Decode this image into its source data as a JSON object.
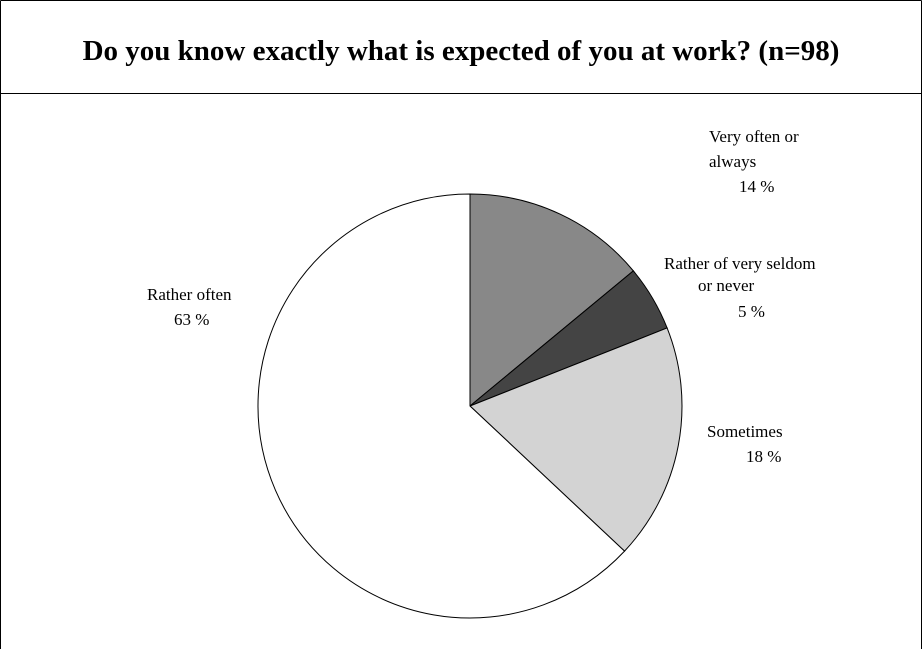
{
  "chart_data": {
    "type": "pie",
    "title": "Do you know exactly what is expected of you at work? (n=98)",
    "slices": [
      {
        "label_lines": [
          "Very often or",
          "always"
        ],
        "value_text": "14 %",
        "value": 14,
        "color": "#888888"
      },
      {
        "label_lines": [
          "Rather of very seldom",
          "or never"
        ],
        "value_text": "5 %",
        "value": 5,
        "color": "#444444"
      },
      {
        "label_lines": [
          "Sometimes"
        ],
        "value_text": "18 %",
        "value": 18,
        "color": "#d3d3d3"
      },
      {
        "label_lines": [
          "Rather often"
        ],
        "value_text": "63 %",
        "value": 63,
        "color": "#ffffff"
      }
    ],
    "start": "12 o'clock",
    "direction": "clockwise",
    "legend": "none"
  }
}
